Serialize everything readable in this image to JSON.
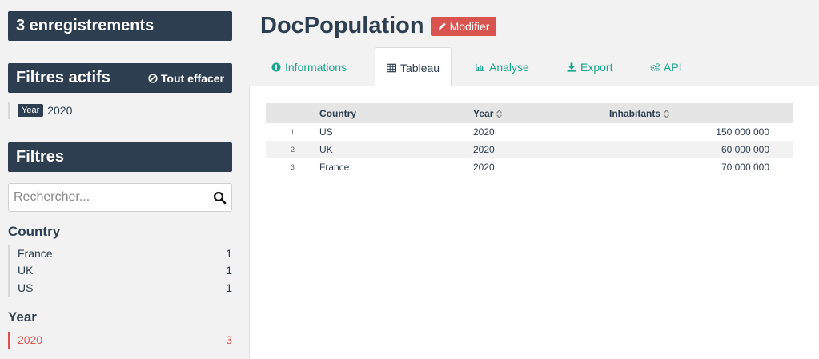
{
  "sidebar": {
    "records_title": "3 enregistrements",
    "active_filters": {
      "title": "Filtres actifs",
      "clear_label": "Tout effacer",
      "items": [
        {
          "facet": "Year",
          "value": "2020"
        }
      ]
    },
    "filters_title": "Filtres",
    "search": {
      "placeholder": "Rechercher...",
      "value": ""
    },
    "facets": [
      {
        "title": "Country",
        "items": [
          {
            "label": "France",
            "count": "1"
          },
          {
            "label": "UK",
            "count": "1"
          },
          {
            "label": "US",
            "count": "1"
          }
        ]
      },
      {
        "title": "Year",
        "items": [
          {
            "label": "2020",
            "count": "3",
            "selected": true
          }
        ]
      }
    ]
  },
  "header": {
    "title": "DocPopulation",
    "edit_label": "Modifier"
  },
  "tabs": [
    {
      "label": "Informations",
      "icon": "info-icon"
    },
    {
      "label": "Tableau",
      "icon": "table-icon",
      "active": true
    },
    {
      "label": "Analyse",
      "icon": "bar-chart-icon"
    },
    {
      "label": "Export",
      "icon": "download-icon"
    },
    {
      "label": "API",
      "icon": "cogs-icon"
    }
  ],
  "table": {
    "columns": [
      "Country",
      "Year",
      "Inhabitants"
    ],
    "rows": [
      {
        "index": "1",
        "country": "US",
        "year": "2020",
        "inhabitants": "150 000 000"
      },
      {
        "index": "2",
        "country": "UK",
        "year": "2020",
        "inhabitants": "60 000 000"
      },
      {
        "index": "3",
        "country": "France",
        "year": "2020",
        "inhabitants": "70 000 000"
      }
    ]
  },
  "colors": {
    "navy": "#2c3e50",
    "red": "#d9534f",
    "teal": "#1aa38c"
  }
}
